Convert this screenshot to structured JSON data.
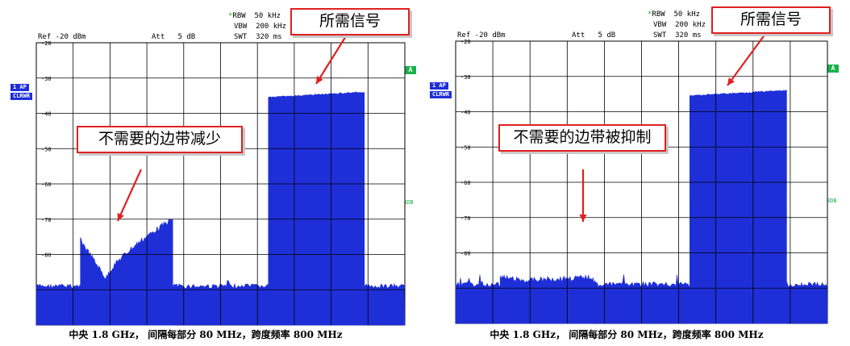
{
  "colors": {
    "trace": "#1e2fd8",
    "grid": "#000000",
    "callout_border": "#e02020",
    "arrow": "#e02020",
    "status_green": "#19b24a"
  },
  "icons": {
    "callout_arrow": "red-arrow"
  },
  "panels": [
    {
      "header": {
        "ref": "Ref -20 dBm",
        "att": "Att   5 dB",
        "rbw": "RBW  50 kHz",
        "vbw": "VBW  200 kHz",
        "swt": "SWT  320 ms"
      },
      "markers": {
        "trace_label_1": "1 AP",
        "trace_label_2": "CLRWR",
        "status": "A",
        "side_label": "3DB"
      },
      "callout_signal": "所需信号",
      "callout_sideband": "不需要的边带减少",
      "caption": "中央 1.8 GHz， 间隔每部分 80 MHz，跨度频率 800 MHz"
    },
    {
      "header": {
        "ref": "Ref -20 dBm",
        "att": "Att   5 dB",
        "rbw": "RBW  50 kHz",
        "vbw": "VBW  200 kHz",
        "swt": "SWT  320 ms"
      },
      "markers": {
        "trace_label_1": "1 AP",
        "trace_label_2": "CLRWR",
        "status": "A",
        "side_label": "3DB"
      },
      "callout_signal": "所需信号",
      "callout_sideband": "不需要的边带被抑制",
      "caption": "中央 1.8 GHz， 间隔每部分 80 MHz，跨度频率 800 MHz"
    }
  ],
  "chart_data": [
    {
      "type": "area",
      "y_unit": "dBm",
      "ylim": [
        -20,
        -100
      ],
      "y_ticks": [
        "-20",
        "-30",
        "-40",
        "-50",
        "-60",
        "-70",
        "-80"
      ],
      "x_center": "1.8 GHz",
      "x_span": "800 MHz",
      "x_div": "80 MHz",
      "x_divisions": 10,
      "grid": true,
      "noise_floor_dbm": -89,
      "segments": [
        {
          "name": "left sideband",
          "x_div_start": 1.2,
          "x_div_end": 3.7,
          "level_start_dbm": -76,
          "level_min_dbm": -87,
          "level_end_dbm": -70
        },
        {
          "name": "desired signal",
          "x_div_start": 6.3,
          "x_div_end": 8.9,
          "level_start_dbm": -35.5,
          "level_end_dbm": -34
        }
      ]
    },
    {
      "type": "area",
      "y_unit": "dBm",
      "ylim": [
        -20,
        -100
      ],
      "y_ticks": [
        "-20",
        "-30",
        "-40",
        "-50",
        "-60",
        "-70",
        "-80"
      ],
      "x_center": "1.8 GHz",
      "x_span": "800 MHz",
      "x_div": "80 MHz",
      "x_divisions": 10,
      "grid": true,
      "noise_floor_dbm": -89,
      "segments": [
        {
          "name": "suppressed sideband",
          "x_div_start": 1.2,
          "x_div_end": 3.7,
          "level_start_dbm": -87,
          "level_min_dbm": -88,
          "level_end_dbm": -87
        },
        {
          "name": "desired signal",
          "x_div_start": 6.3,
          "x_div_end": 8.9,
          "level_start_dbm": -35.5,
          "level_end_dbm": -34
        }
      ]
    }
  ]
}
